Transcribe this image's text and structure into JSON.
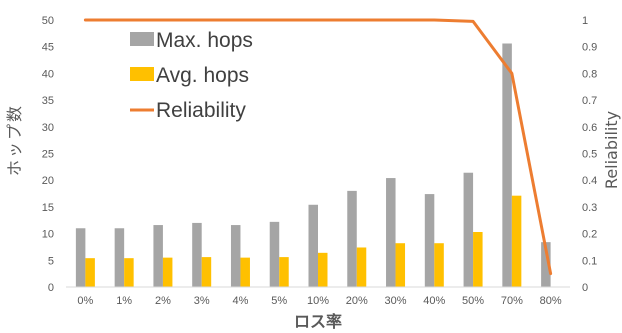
{
  "chart_data": {
    "type": "bar",
    "categories": [
      "0%",
      "1%",
      "2%",
      "3%",
      "4%",
      "5%",
      "10%",
      "20%",
      "30%",
      "40%",
      "50%",
      "70%",
      "80%"
    ],
    "series": [
      {
        "name": "Max. hops",
        "type": "bar",
        "axis": "left",
        "color": "#a5a5a5",
        "values": [
          11,
          11,
          11.6,
          12,
          11.6,
          12.2,
          15.4,
          18,
          20.4,
          17.4,
          21.4,
          45.6,
          8.4
        ]
      },
      {
        "name": "Avg. hops",
        "type": "bar",
        "axis": "left",
        "color": "#ffc000",
        "values": [
          5.4,
          5.4,
          5.5,
          5.6,
          5.5,
          5.6,
          6.4,
          7.4,
          8.2,
          8.2,
          10.3,
          17.1,
          0
        ]
      },
      {
        "name": "Reliability",
        "type": "line",
        "axis": "right",
        "color": "#ed7d31",
        "values": [
          1,
          1,
          1,
          1,
          1,
          1,
          1,
          1,
          1,
          1,
          0.995,
          0.8,
          0.05
        ]
      }
    ],
    "xlabel": "ロス率",
    "ylabel": "ホップ数",
    "y2label": "Reliability",
    "ylim": [
      0,
      50
    ],
    "y2lim": [
      0,
      1
    ],
    "yticks": [
      "0",
      "5",
      "10",
      "15",
      "20",
      "25",
      "30",
      "35",
      "40",
      "45",
      "50"
    ],
    "y2ticks": [
      "0",
      "0.1",
      "0.2",
      "0.3",
      "0.4",
      "0.5",
      "0.6",
      "0.7",
      "0.8",
      "0.9",
      "1"
    ],
    "grid": false,
    "legend": "top-left"
  }
}
